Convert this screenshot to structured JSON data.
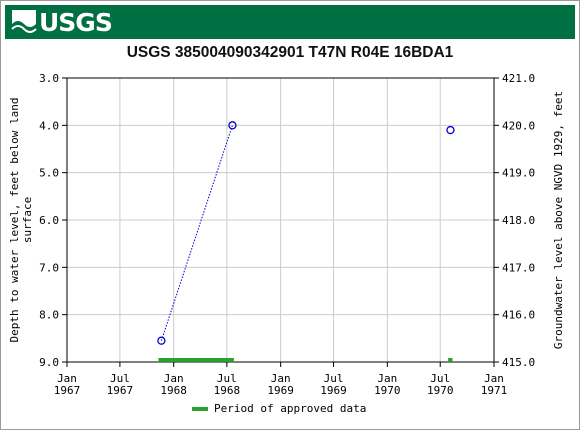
{
  "header": {
    "logo_text": "USGS"
  },
  "chart_data": {
    "type": "scatter",
    "title": "USGS 385004090342901 T47N R04E 16BDA1",
    "ylabel_left": "Depth to water level, feet below land surface",
    "ylabel_right": "Groundwater level above NGVD 1929, feet",
    "ylim_left": [
      9.0,
      3.0
    ],
    "ylim_right": [
      415.0,
      421.0
    ],
    "xlim": [
      "1967-01-01",
      "1971-01-01"
    ],
    "x_ticks": [
      {
        "date": "1967-01-01",
        "label1": "Jan",
        "label2": "1967"
      },
      {
        "date": "1967-07-01",
        "label1": "Jul",
        "label2": "1967"
      },
      {
        "date": "1968-01-01",
        "label1": "Jan",
        "label2": "1968"
      },
      {
        "date": "1968-07-01",
        "label1": "Jul",
        "label2": "1968"
      },
      {
        "date": "1969-01-01",
        "label1": "Jan",
        "label2": "1969"
      },
      {
        "date": "1969-07-01",
        "label1": "Jul",
        "label2": "1969"
      },
      {
        "date": "1970-01-01",
        "label1": "Jan",
        "label2": "1970"
      },
      {
        "date": "1970-07-01",
        "label1": "Jul",
        "label2": "1970"
      },
      {
        "date": "1971-01-01",
        "label1": "Jan",
        "label2": "1971"
      }
    ],
    "y_ticks_left": [
      "3.0",
      "4.0",
      "5.0",
      "6.0",
      "7.0",
      "8.0",
      "9.0"
    ],
    "y_ticks_right": [
      "421.0",
      "420.0",
      "419.0",
      "418.0",
      "417.0",
      "416.0",
      "415.0"
    ],
    "grid": true,
    "series": [
      {
        "points": [
          {
            "date": "1967-11-20",
            "depth": 8.55
          },
          {
            "date": "1968-07-20",
            "depth": 4.0
          },
          {
            "date": "1970-08-05",
            "depth": 4.1
          }
        ],
        "connected_pairs": [
          [
            0,
            1
          ]
        ],
        "color": "#0000cc"
      }
    ],
    "approved_periods": [
      {
        "start": "1967-11-10",
        "end": "1968-07-25"
      },
      {
        "start": "1970-07-28",
        "end": "1970-08-12"
      }
    ],
    "approved_color": "#2ca02c",
    "legend": {
      "label": "Period of approved data",
      "position": "bottom"
    }
  }
}
